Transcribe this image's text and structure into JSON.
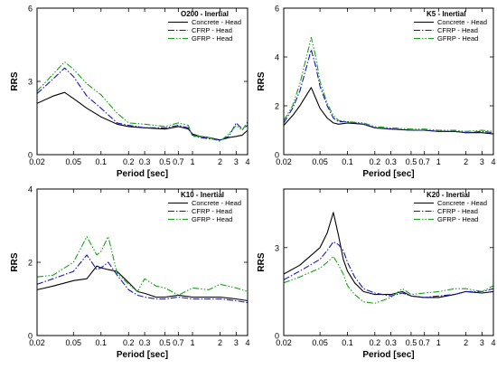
{
  "colors": {
    "concrete": "#000000",
    "cfrp": "#1515b8",
    "gfrp": "#17a017"
  },
  "chart_data": [
    {
      "type": "line",
      "title": "O200 - Inertial",
      "xlabel": "Period [sec]",
      "ylabel": "RRS",
      "xscale": "log",
      "xlim": [
        0.02,
        4
      ],
      "ylim": [
        0,
        6
      ],
      "xticks": [
        0.02,
        0.05,
        0.1,
        0.2,
        0.3,
        0.5,
        0.7,
        1,
        2,
        3,
        4
      ],
      "xtick_labels": [
        "0.02",
        "0.05",
        "0.1",
        "0.2",
        "0.3",
        "0.5",
        "0.7",
        "1",
        "2",
        "3",
        "4"
      ],
      "yticks": [
        0,
        3,
        6
      ],
      "ytick_labels": [
        "0",
        "3",
        "6"
      ],
      "legend_position": "top-right",
      "series": [
        {
          "name": "Concrete - Head",
          "style": "solid",
          "x": [
            0.02,
            0.03,
            0.04,
            0.05,
            0.07,
            0.1,
            0.15,
            0.2,
            0.3,
            0.5,
            0.7,
            0.9,
            1.0,
            1.2,
            1.5,
            2.0,
            2.5,
            3.0,
            3.5,
            4.0
          ],
          "y": [
            2.1,
            2.4,
            2.55,
            2.3,
            1.9,
            1.55,
            1.25,
            1.15,
            1.1,
            1.05,
            1.15,
            1.05,
            0.85,
            0.75,
            0.7,
            0.6,
            0.7,
            0.75,
            0.8,
            1.0
          ]
        },
        {
          "name": "CFRP - Head",
          "style": "dashdot",
          "x": [
            0.02,
            0.03,
            0.04,
            0.05,
            0.07,
            0.1,
            0.15,
            0.2,
            0.3,
            0.5,
            0.7,
            0.9,
            1.0,
            1.2,
            1.5,
            2.0,
            2.5,
            3.0,
            3.5,
            4.0
          ],
          "y": [
            2.5,
            3.1,
            3.55,
            3.2,
            2.4,
            1.9,
            1.3,
            1.2,
            1.1,
            1.1,
            1.2,
            1.1,
            0.8,
            0.7,
            0.65,
            0.6,
            0.75,
            1.3,
            1.05,
            1.2
          ]
        },
        {
          "name": "GFRP - Head",
          "style": "dashdotdot",
          "x": [
            0.02,
            0.03,
            0.04,
            0.05,
            0.07,
            0.1,
            0.15,
            0.2,
            0.3,
            0.5,
            0.7,
            0.9,
            1.0,
            1.2,
            1.5,
            2.0,
            2.5,
            3.0,
            3.5,
            4.0
          ],
          "y": [
            2.6,
            3.3,
            3.8,
            3.5,
            2.9,
            2.45,
            1.7,
            1.3,
            1.25,
            1.15,
            1.3,
            1.2,
            0.75,
            0.75,
            0.7,
            0.55,
            0.85,
            1.2,
            1.0,
            1.35
          ]
        }
      ]
    },
    {
      "type": "line",
      "title": "K5 - Inertial",
      "xlabel": "Period [sec]",
      "ylabel": "RRS",
      "xscale": "log",
      "xlim": [
        0.02,
        4
      ],
      "ylim": [
        0,
        6
      ],
      "xticks": [
        0.02,
        0.05,
        0.1,
        0.2,
        0.3,
        0.5,
        0.7,
        1,
        2,
        3,
        4
      ],
      "xtick_labels": [
        "0.02",
        "0.05",
        "0.1",
        "0.2",
        "0.3",
        "0.5",
        "0.7",
        "1",
        "2",
        "3",
        "4"
      ],
      "yticks": [
        0,
        2,
        4,
        6
      ],
      "ytick_labels": [
        "0",
        "2",
        "4",
        "6"
      ],
      "legend_position": "top-right",
      "series": [
        {
          "name": "Concrete - Head",
          "style": "solid",
          "x": [
            0.02,
            0.025,
            0.03,
            0.035,
            0.04,
            0.045,
            0.05,
            0.06,
            0.07,
            0.08,
            0.1,
            0.15,
            0.2,
            0.3,
            0.5,
            0.7,
            1.0,
            1.5,
            2.0,
            3.0,
            4.0
          ],
          "y": [
            1.2,
            1.6,
            2.0,
            2.4,
            2.75,
            2.3,
            1.9,
            1.5,
            1.3,
            1.25,
            1.3,
            1.25,
            1.1,
            1.05,
            1.0,
            1.0,
            0.95,
            0.95,
            0.9,
            0.9,
            0.85
          ]
        },
        {
          "name": "CFRP - Head",
          "style": "dashdot",
          "x": [
            0.02,
            0.025,
            0.03,
            0.035,
            0.04,
            0.045,
            0.05,
            0.06,
            0.07,
            0.08,
            0.1,
            0.15,
            0.2,
            0.3,
            0.5,
            0.7,
            1.0,
            1.5,
            2.0,
            3.0,
            4.0
          ],
          "y": [
            1.3,
            1.9,
            2.6,
            3.5,
            4.3,
            3.6,
            2.8,
            2.0,
            1.5,
            1.35,
            1.35,
            1.25,
            1.1,
            1.05,
            1.0,
            1.0,
            0.95,
            0.95,
            0.9,
            0.95,
            0.9
          ]
        },
        {
          "name": "GFRP - Head",
          "style": "dashdotdot",
          "x": [
            0.02,
            0.025,
            0.03,
            0.035,
            0.04,
            0.045,
            0.05,
            0.06,
            0.07,
            0.08,
            0.1,
            0.15,
            0.2,
            0.3,
            0.5,
            0.7,
            1.0,
            1.5,
            2.0,
            3.0,
            4.0
          ],
          "y": [
            1.4,
            2.0,
            2.9,
            3.9,
            4.8,
            4.0,
            3.0,
            2.1,
            1.6,
            1.4,
            1.35,
            1.3,
            1.15,
            1.1,
            1.05,
            1.05,
            1.0,
            1.0,
            0.95,
            1.0,
            0.95
          ]
        }
      ]
    },
    {
      "type": "line",
      "title": "K10 - Inertial",
      "xlabel": "Period [sec]",
      "ylabel": "RRS",
      "xscale": "log",
      "xlim": [
        0.02,
        4
      ],
      "ylim": [
        0,
        4
      ],
      "xticks": [
        0.02,
        0.05,
        0.1,
        0.2,
        0.3,
        0.5,
        0.7,
        1,
        2,
        3,
        4
      ],
      "xtick_labels": [
        "0.02",
        "0.05",
        "0.1",
        "0.2",
        "0.3",
        "0.5",
        "0.7",
        "1",
        "2",
        "3",
        "4"
      ],
      "yticks": [
        0,
        2,
        4
      ],
      "ytick_labels": [
        "0",
        "2",
        "4"
      ],
      "legend_position": "top-right",
      "series": [
        {
          "name": "Concrete - Head",
          "style": "solid",
          "x": [
            0.02,
            0.03,
            0.05,
            0.07,
            0.09,
            0.1,
            0.12,
            0.15,
            0.2,
            0.25,
            0.3,
            0.4,
            0.5,
            0.7,
            1.0,
            1.5,
            2.0,
            3.0,
            4.0
          ],
          "y": [
            1.25,
            1.35,
            1.5,
            1.55,
            1.9,
            1.85,
            1.8,
            1.75,
            1.45,
            1.2,
            1.15,
            1.05,
            1.05,
            1.1,
            1.05,
            1.05,
            1.05,
            1.0,
            0.95
          ]
        },
        {
          "name": "CFRP - Head",
          "style": "dashdot",
          "x": [
            0.02,
            0.03,
            0.05,
            0.07,
            0.09,
            0.1,
            0.12,
            0.15,
            0.2,
            0.25,
            0.3,
            0.4,
            0.5,
            0.7,
            1.0,
            1.5,
            2.0,
            3.0,
            4.0
          ],
          "y": [
            1.4,
            1.55,
            1.75,
            2.2,
            1.8,
            1.85,
            2.0,
            1.65,
            1.25,
            1.1,
            1.05,
            1.0,
            1.0,
            1.05,
            1.0,
            1.0,
            1.0,
            0.95,
            0.9
          ]
        },
        {
          "name": "GFRP - Head",
          "style": "dashdotdot",
          "x": [
            0.02,
            0.03,
            0.05,
            0.07,
            0.09,
            0.1,
            0.12,
            0.15,
            0.2,
            0.25,
            0.3,
            0.4,
            0.5,
            0.7,
            1.0,
            1.5,
            2.0,
            3.0,
            4.0
          ],
          "y": [
            1.6,
            1.65,
            2.0,
            2.7,
            2.2,
            2.3,
            2.7,
            1.7,
            1.4,
            1.2,
            1.55,
            1.35,
            1.3,
            1.1,
            1.3,
            1.25,
            1.4,
            1.3,
            1.2
          ]
        }
      ]
    },
    {
      "type": "line",
      "title": "K20 - Inertial",
      "xlabel": "Period [sec]",
      "ylabel": "RRS",
      "xscale": "log",
      "xlim": [
        0.02,
        4
      ],
      "ylim": [
        0,
        5
      ],
      "xticks": [
        0.02,
        0.05,
        0.1,
        0.2,
        0.3,
        0.5,
        0.7,
        1,
        2,
        3,
        4
      ],
      "xtick_labels": [
        "0.02",
        "0.05",
        "0.1",
        "0.2",
        "0.3",
        "0.5",
        "0.7",
        "1",
        "2",
        "3",
        "4"
      ],
      "yticks": [
        0,
        3
      ],
      "ytick_labels": [
        "0",
        "3"
      ],
      "legend_position": "top-right",
      "series": [
        {
          "name": "Concrete - Head",
          "style": "solid",
          "x": [
            0.02,
            0.03,
            0.05,
            0.06,
            0.07,
            0.08,
            0.09,
            0.1,
            0.12,
            0.15,
            0.2,
            0.3,
            0.4,
            0.5,
            0.7,
            1.0,
            1.5,
            2.0,
            3.0,
            4.0
          ],
          "y": [
            2.1,
            2.4,
            3.0,
            3.5,
            4.2,
            3.4,
            2.6,
            2.2,
            1.8,
            1.5,
            1.4,
            1.4,
            1.5,
            1.35,
            1.3,
            1.3,
            1.4,
            1.5,
            1.45,
            1.5
          ]
        },
        {
          "name": "CFRP - Head",
          "style": "dashdot",
          "x": [
            0.02,
            0.03,
            0.05,
            0.06,
            0.07,
            0.08,
            0.09,
            0.1,
            0.12,
            0.15,
            0.2,
            0.3,
            0.4,
            0.5,
            0.7,
            1.0,
            1.5,
            2.0,
            3.0,
            4.0
          ],
          "y": [
            1.9,
            2.2,
            2.6,
            2.9,
            3.2,
            3.1,
            2.9,
            2.5,
            2.0,
            1.6,
            1.45,
            1.35,
            1.45,
            1.35,
            1.3,
            1.35,
            1.4,
            1.5,
            1.5,
            1.6
          ]
        },
        {
          "name": "GFRP - Head",
          "style": "dashdotdot",
          "x": [
            0.02,
            0.03,
            0.05,
            0.06,
            0.07,
            0.08,
            0.09,
            0.1,
            0.12,
            0.15,
            0.2,
            0.3,
            0.4,
            0.5,
            0.7,
            1.0,
            1.5,
            2.0,
            3.0,
            4.0
          ],
          "y": [
            1.8,
            2.0,
            2.3,
            2.5,
            2.7,
            2.4,
            2.1,
            1.7,
            1.4,
            1.15,
            1.1,
            1.3,
            1.6,
            1.4,
            1.45,
            1.5,
            1.6,
            1.6,
            1.5,
            1.7
          ]
        }
      ]
    }
  ]
}
